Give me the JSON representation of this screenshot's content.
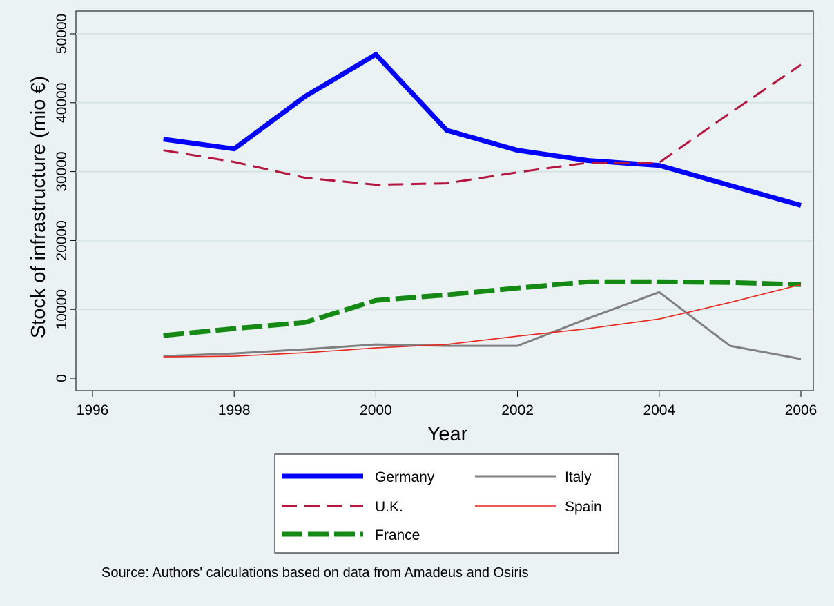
{
  "chart_data": {
    "type": "line",
    "title": "",
    "xlabel": "Year",
    "ylabel": "Stock of infrastructure (mio €)",
    "xlim": [
      1996,
      2006
    ],
    "ylim": [
      0,
      50000
    ],
    "xticks": [
      1996,
      1998,
      2000,
      2002,
      2004,
      2006
    ],
    "yticks": [
      0,
      10000,
      20000,
      30000,
      40000,
      50000
    ],
    "grid": "horizontal",
    "legend_position": "bottom",
    "x": [
      1997,
      1998,
      1999,
      2000,
      2001,
      2002,
      2003,
      2004,
      2005,
      2006
    ],
    "series": [
      {
        "name": "Germany",
        "color": "#0000ff",
        "style": "solid-thick",
        "values": [
          34700,
          33300,
          40900,
          47000,
          36000,
          33100,
          31600,
          30900,
          28000,
          25100
        ]
      },
      {
        "name": "U.K.",
        "color": "#b5163f",
        "style": "dashed",
        "values": [
          33100,
          31400,
          29100,
          28100,
          28300,
          29900,
          31300,
          31300,
          38500,
          45500
        ]
      },
      {
        "name": "France",
        "color": "#148a14",
        "style": "dashed-thick",
        "values": [
          6200,
          7200,
          8100,
          11300,
          12100,
          13100,
          14000,
          14000,
          13900,
          13600
        ]
      },
      {
        "name": "Italy",
        "color": "#808080",
        "style": "solid",
        "values": [
          3200,
          3600,
          4200,
          4900,
          4700,
          4700,
          8700,
          12500,
          4700,
          2800
        ]
      },
      {
        "name": "Spain",
        "color": "#e8251e",
        "style": "solid-thin",
        "values": [
          3100,
          3200,
          3700,
          4400,
          4900,
          6100,
          7200,
          8600,
          11000,
          13600
        ]
      }
    ],
    "note": "Source: Authors' calculations based on data from Amadeus and Osiris"
  }
}
